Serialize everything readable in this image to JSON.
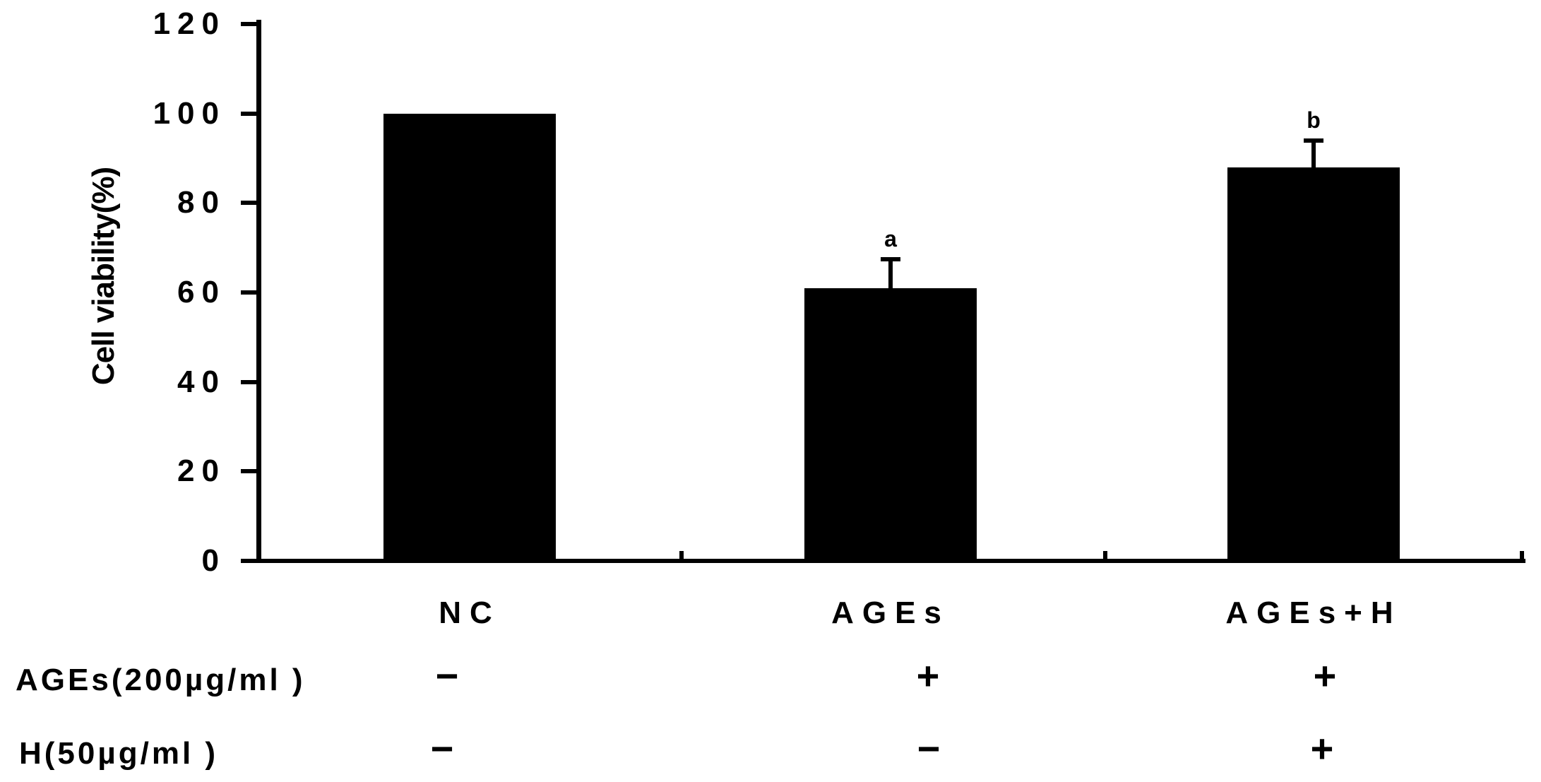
{
  "figure": {
    "background": "#ffffff",
    "ink_color": "#000000"
  },
  "chart_data": {
    "type": "bar",
    "title": "",
    "xlabel": "",
    "ylabel": "Cell viability(%)",
    "categories": [
      "NC",
      "AGEs",
      "AGEs+H"
    ],
    "values": [
      100,
      61,
      88
    ],
    "errors_plus": [
      0,
      6.5,
      6
    ],
    "sig_labels": [
      "",
      "a",
      "b"
    ],
    "bar_color": "#000000",
    "ylim": [
      0,
      120
    ],
    "yticks": [
      0,
      20,
      40,
      60,
      80,
      100,
      120
    ],
    "grid": "off",
    "legend": "none",
    "error_bars": "upper only, T-cap",
    "condition_rows": [
      {
        "label": "AGEs(200µg/ml )",
        "values": [
          "−",
          "+",
          "+"
        ]
      },
      {
        "label": "H(50µg/ml )",
        "values": [
          "−",
          "−",
          "+"
        ]
      }
    ]
  }
}
